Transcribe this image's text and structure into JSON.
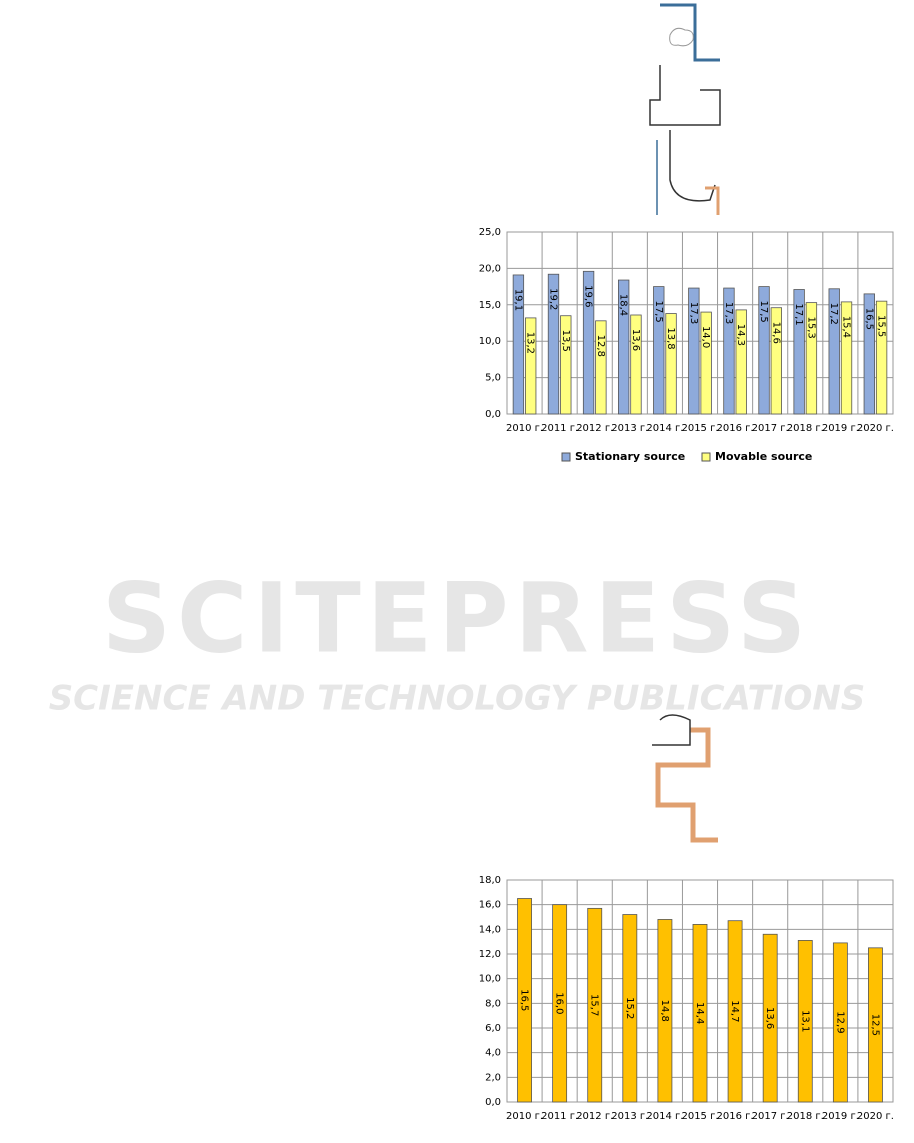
{
  "watermark": {
    "title": "SCITEPRESS",
    "subtitle": "SCIENCE AND TECHNOLOGY PUBLICATIONS"
  },
  "chart_data": [
    {
      "type": "bar",
      "categories": [
        "2010 г.",
        "2011 г.",
        "2012 г.",
        "2013 г.",
        "2014 г.",
        "2015 г.",
        "2016 г.",
        "2017 г.",
        "2018 г.",
        "2019 г.",
        "2020 г."
      ],
      "series": [
        {
          "name": "Stationary source",
          "color": "#8eaadb",
          "values": [
            19.1,
            19.2,
            19.6,
            18.4,
            17.5,
            17.3,
            17.3,
            17.5,
            17.1,
            17.2,
            16.5
          ],
          "value_labels": [
            "19,1",
            "19,2",
            "19,6",
            "18,4",
            "17,5",
            "17,3",
            "17,3",
            "17,5",
            "17,1",
            "17,2",
            "16,5"
          ]
        },
        {
          "name": "Movable source",
          "color": "#ffff80",
          "values": [
            13.2,
            13.5,
            12.8,
            13.6,
            13.8,
            14.0,
            14.3,
            14.6,
            15.3,
            15.4,
            15.5
          ],
          "value_labels": [
            "13,2",
            "13,5",
            "12,8",
            "13,6",
            "13,8",
            "14,0",
            "14,3",
            "14,6",
            "15,3",
            "15,4",
            "15,5"
          ]
        }
      ],
      "ylim": [
        0,
        25
      ],
      "yticks": [
        {
          "value": 0,
          "label": "0,0"
        },
        {
          "value": 5,
          "label": "5,0"
        },
        {
          "value": 10,
          "label": "10,0"
        },
        {
          "value": 15,
          "label": "15,0"
        },
        {
          "value": 20,
          "label": "20,0"
        },
        {
          "value": 25,
          "label": "25,0"
        }
      ],
      "grid": true,
      "legend": "bottom"
    },
    {
      "type": "bar",
      "categories": [
        "2010 г.",
        "2011 г.",
        "2012 г.",
        "2013 г.",
        "2014 г.",
        "2015 г.",
        "2016 г.",
        "2017 г.",
        "2018 г.",
        "2019 г.",
        "2020 г."
      ],
      "values": [
        16.5,
        16.0,
        15.7,
        15.2,
        14.8,
        14.4,
        14.7,
        13.6,
        13.1,
        12.9,
        12.5
      ],
      "value_labels": [
        "16,5",
        "16,0",
        "15,7",
        "15,2",
        "14,8",
        "14,4",
        "14,7",
        "13,6",
        "13,1",
        "12,9",
        "12,5"
      ],
      "color": "#ffc000",
      "ylim": [
        0,
        18
      ],
      "yticks": [
        {
          "value": 0,
          "label": "0,0"
        },
        {
          "value": 2,
          "label": "2,0"
        },
        {
          "value": 4,
          "label": "4,0"
        },
        {
          "value": 6,
          "label": "6,0"
        },
        {
          "value": 8,
          "label": "8,0"
        },
        {
          "value": 10,
          "label": "10,0"
        },
        {
          "value": 12,
          "label": "12,0"
        },
        {
          "value": 14,
          "label": "14,0"
        },
        {
          "value": 16,
          "label": "16,0"
        },
        {
          "value": 18,
          "label": "18,0"
        }
      ],
      "grid": true
    }
  ]
}
